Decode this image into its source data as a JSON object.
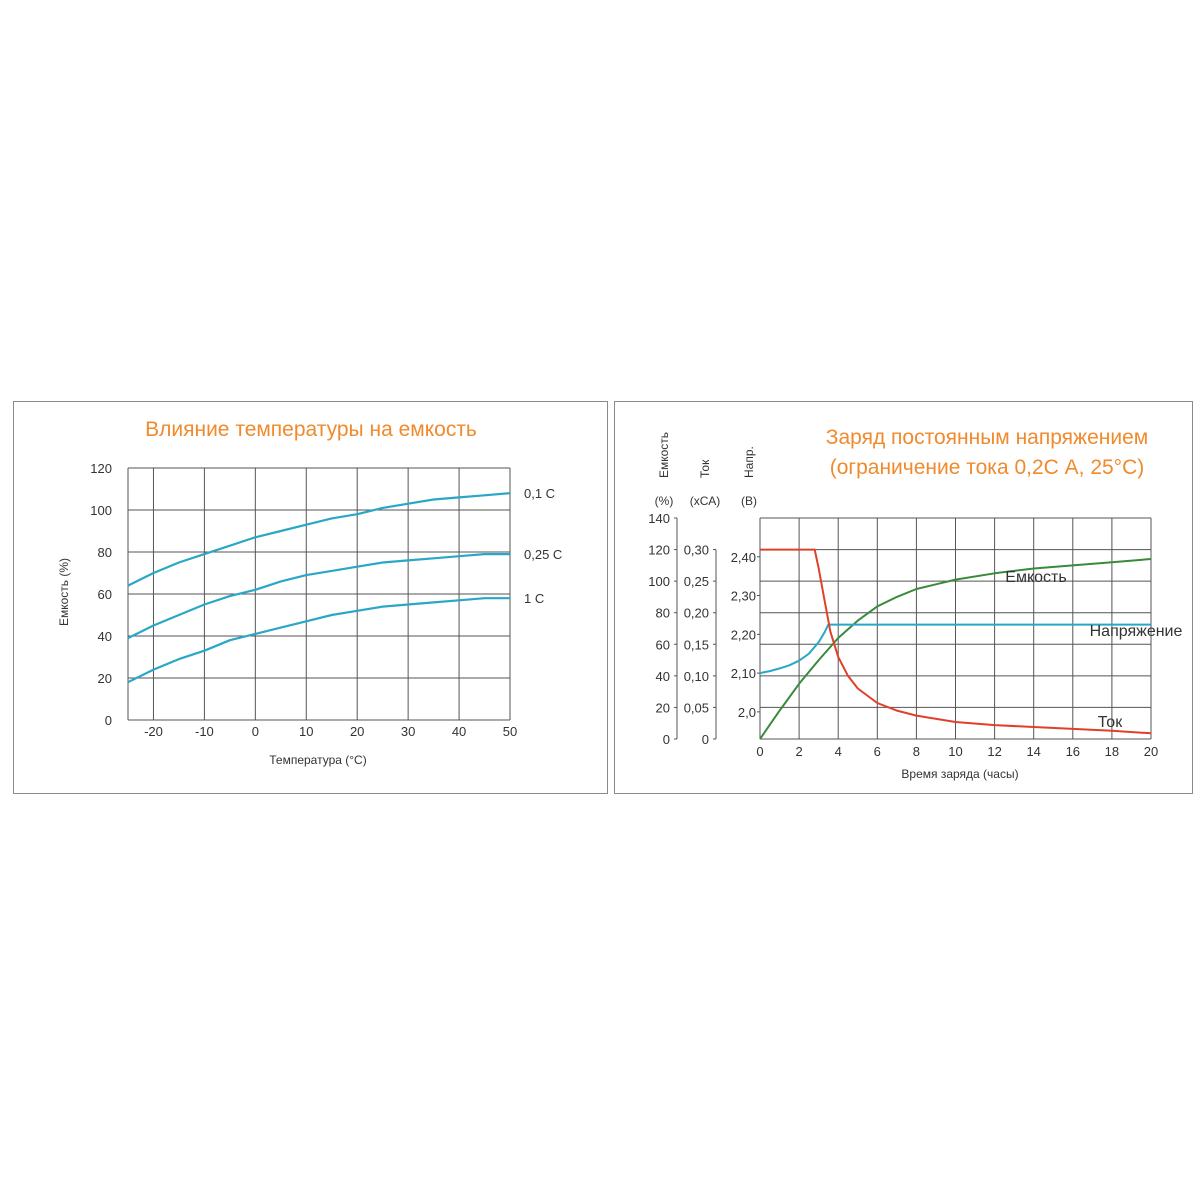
{
  "chart_data": [
    {
      "type": "line",
      "title": "Влияние температуры на емкость",
      "xlabel": "Температура (°C)",
      "ylabel": "Емкость (%)",
      "xlim": [
        -25,
        50
      ],
      "ylim": [
        0,
        120
      ],
      "x_ticks": [
        -20,
        -10,
        0,
        10,
        20,
        30,
        40,
        50
      ],
      "x_tick_labels": [
        "-20",
        "-10",
        "0",
        "10",
        "20",
        "30",
        "40",
        "50"
      ],
      "y_ticks": [
        0,
        20,
        40,
        60,
        80,
        100,
        120
      ],
      "y_tick_labels": [
        "0",
        "20",
        "40",
        "60",
        "80",
        "100",
        "120"
      ],
      "grid": true,
      "line_color": "#2aa7c7",
      "title_color": "#f08a2c",
      "series": [
        {
          "name": "0,1 C",
          "x": [
            -25,
            -20,
            -15,
            -10,
            -5,
            0,
            5,
            10,
            15,
            20,
            25,
            30,
            35,
            40,
            45,
            50
          ],
          "y": [
            64,
            70,
            75,
            79,
            83,
            87,
            90,
            93,
            96,
            98,
            101,
            103,
            105,
            106,
            107,
            108
          ]
        },
        {
          "name": "0,25 C",
          "x": [
            -25,
            -20,
            -15,
            -10,
            -5,
            0,
            5,
            10,
            15,
            20,
            25,
            30,
            35,
            40,
            45,
            50
          ],
          "y": [
            39,
            45,
            50,
            55,
            59,
            62,
            66,
            69,
            71,
            73,
            75,
            76,
            77,
            78,
            79,
            79
          ]
        },
        {
          "name": "1 C",
          "x": [
            -25,
            -20,
            -15,
            -10,
            -5,
            0,
            5,
            10,
            15,
            20,
            25,
            30,
            35,
            40,
            45,
            50
          ],
          "y": [
            18,
            24,
            29,
            33,
            38,
            41,
            44,
            47,
            50,
            52,
            54,
            55,
            56,
            57,
            58,
            58
          ]
        }
      ]
    },
    {
      "type": "line",
      "title": "Заряд постоянным напряжением",
      "subtitle": "(ограничение тока 0,2С А, 25°С)",
      "xlabel": "Время заряда (часы)",
      "xlim": [
        0,
        20
      ],
      "x_ticks": [
        0,
        2,
        4,
        6,
        8,
        10,
        12,
        14,
        16,
        18,
        20
      ],
      "x_tick_labels": [
        "0",
        "2",
        "4",
        "6",
        "8",
        "10",
        "12",
        "14",
        "16",
        "18",
        "20"
      ],
      "grid": true,
      "title_color": "#f08a2c",
      "axes": [
        {
          "name_line1": "Емкость",
          "unit": "(%)",
          "ylim": [
            0,
            140
          ],
          "tick_labels": [
            "0",
            "20",
            "40",
            "60",
            "80",
            "100",
            "120",
            "140"
          ],
          "ticks": [
            0,
            20,
            40,
            60,
            80,
            100,
            120,
            140
          ]
        },
        {
          "name_line1": "Ток",
          "unit": "(хСА)",
          "ylim": [
            0,
            0.35
          ],
          "tick_labels": [
            "0",
            "0,05",
            "0,10",
            "0,15",
            "0,20",
            "0,25",
            "0,30"
          ],
          "ticks": [
            0,
            0.05,
            0.1,
            0.15,
            0.2,
            0.25,
            0.3
          ]
        },
        {
          "name_line1": "Напр.",
          "unit": "(В)",
          "ylim": [
            1.93,
            2.5
          ],
          "tick_labels": [
            "2,0",
            "2,10",
            "2,20",
            "2,30",
            "2,40"
          ],
          "ticks": [
            2.0,
            2.1,
            2.2,
            2.3,
            2.4
          ]
        }
      ],
      "series": [
        {
          "name": "Емкость",
          "axis": 0,
          "color": "#3a8a3c",
          "x": [
            0,
            1,
            2,
            3,
            4,
            5,
            6,
            7,
            8,
            9,
            10,
            12,
            14,
            16,
            18,
            20
          ],
          "y": [
            0,
            18,
            35,
            50,
            64,
            75,
            84,
            90,
            95,
            98,
            101,
            105,
            108,
            110,
            112,
            114
          ]
        },
        {
          "name": "Напряжение",
          "axis": 2,
          "color": "#2aa7c7",
          "x": [
            0,
            0.5,
            1,
            1.5,
            2,
            2.5,
            3,
            3.3,
            3.5,
            4,
            6,
            8,
            10,
            12,
            14,
            16,
            18,
            20
          ],
          "y": [
            2.1,
            2.105,
            2.112,
            2.12,
            2.132,
            2.15,
            2.18,
            2.205,
            2.225,
            2.225,
            2.225,
            2.225,
            2.225,
            2.225,
            2.225,
            2.225,
            2.225,
            2.225
          ]
        },
        {
          "name": "Ток",
          "axis": 1,
          "color": "#e0402a",
          "x": [
            0,
            1,
            2,
            2.8,
            3.0,
            3.3,
            3.6,
            4,
            4.5,
            5,
            6,
            7,
            8,
            10,
            12,
            14,
            16,
            18,
            20
          ],
          "y": [
            0.3,
            0.3,
            0.3,
            0.3,
            0.27,
            0.22,
            0.17,
            0.13,
            0.1,
            0.08,
            0.057,
            0.045,
            0.037,
            0.027,
            0.022,
            0.019,
            0.016,
            0.013,
            0.009
          ]
        }
      ]
    }
  ]
}
